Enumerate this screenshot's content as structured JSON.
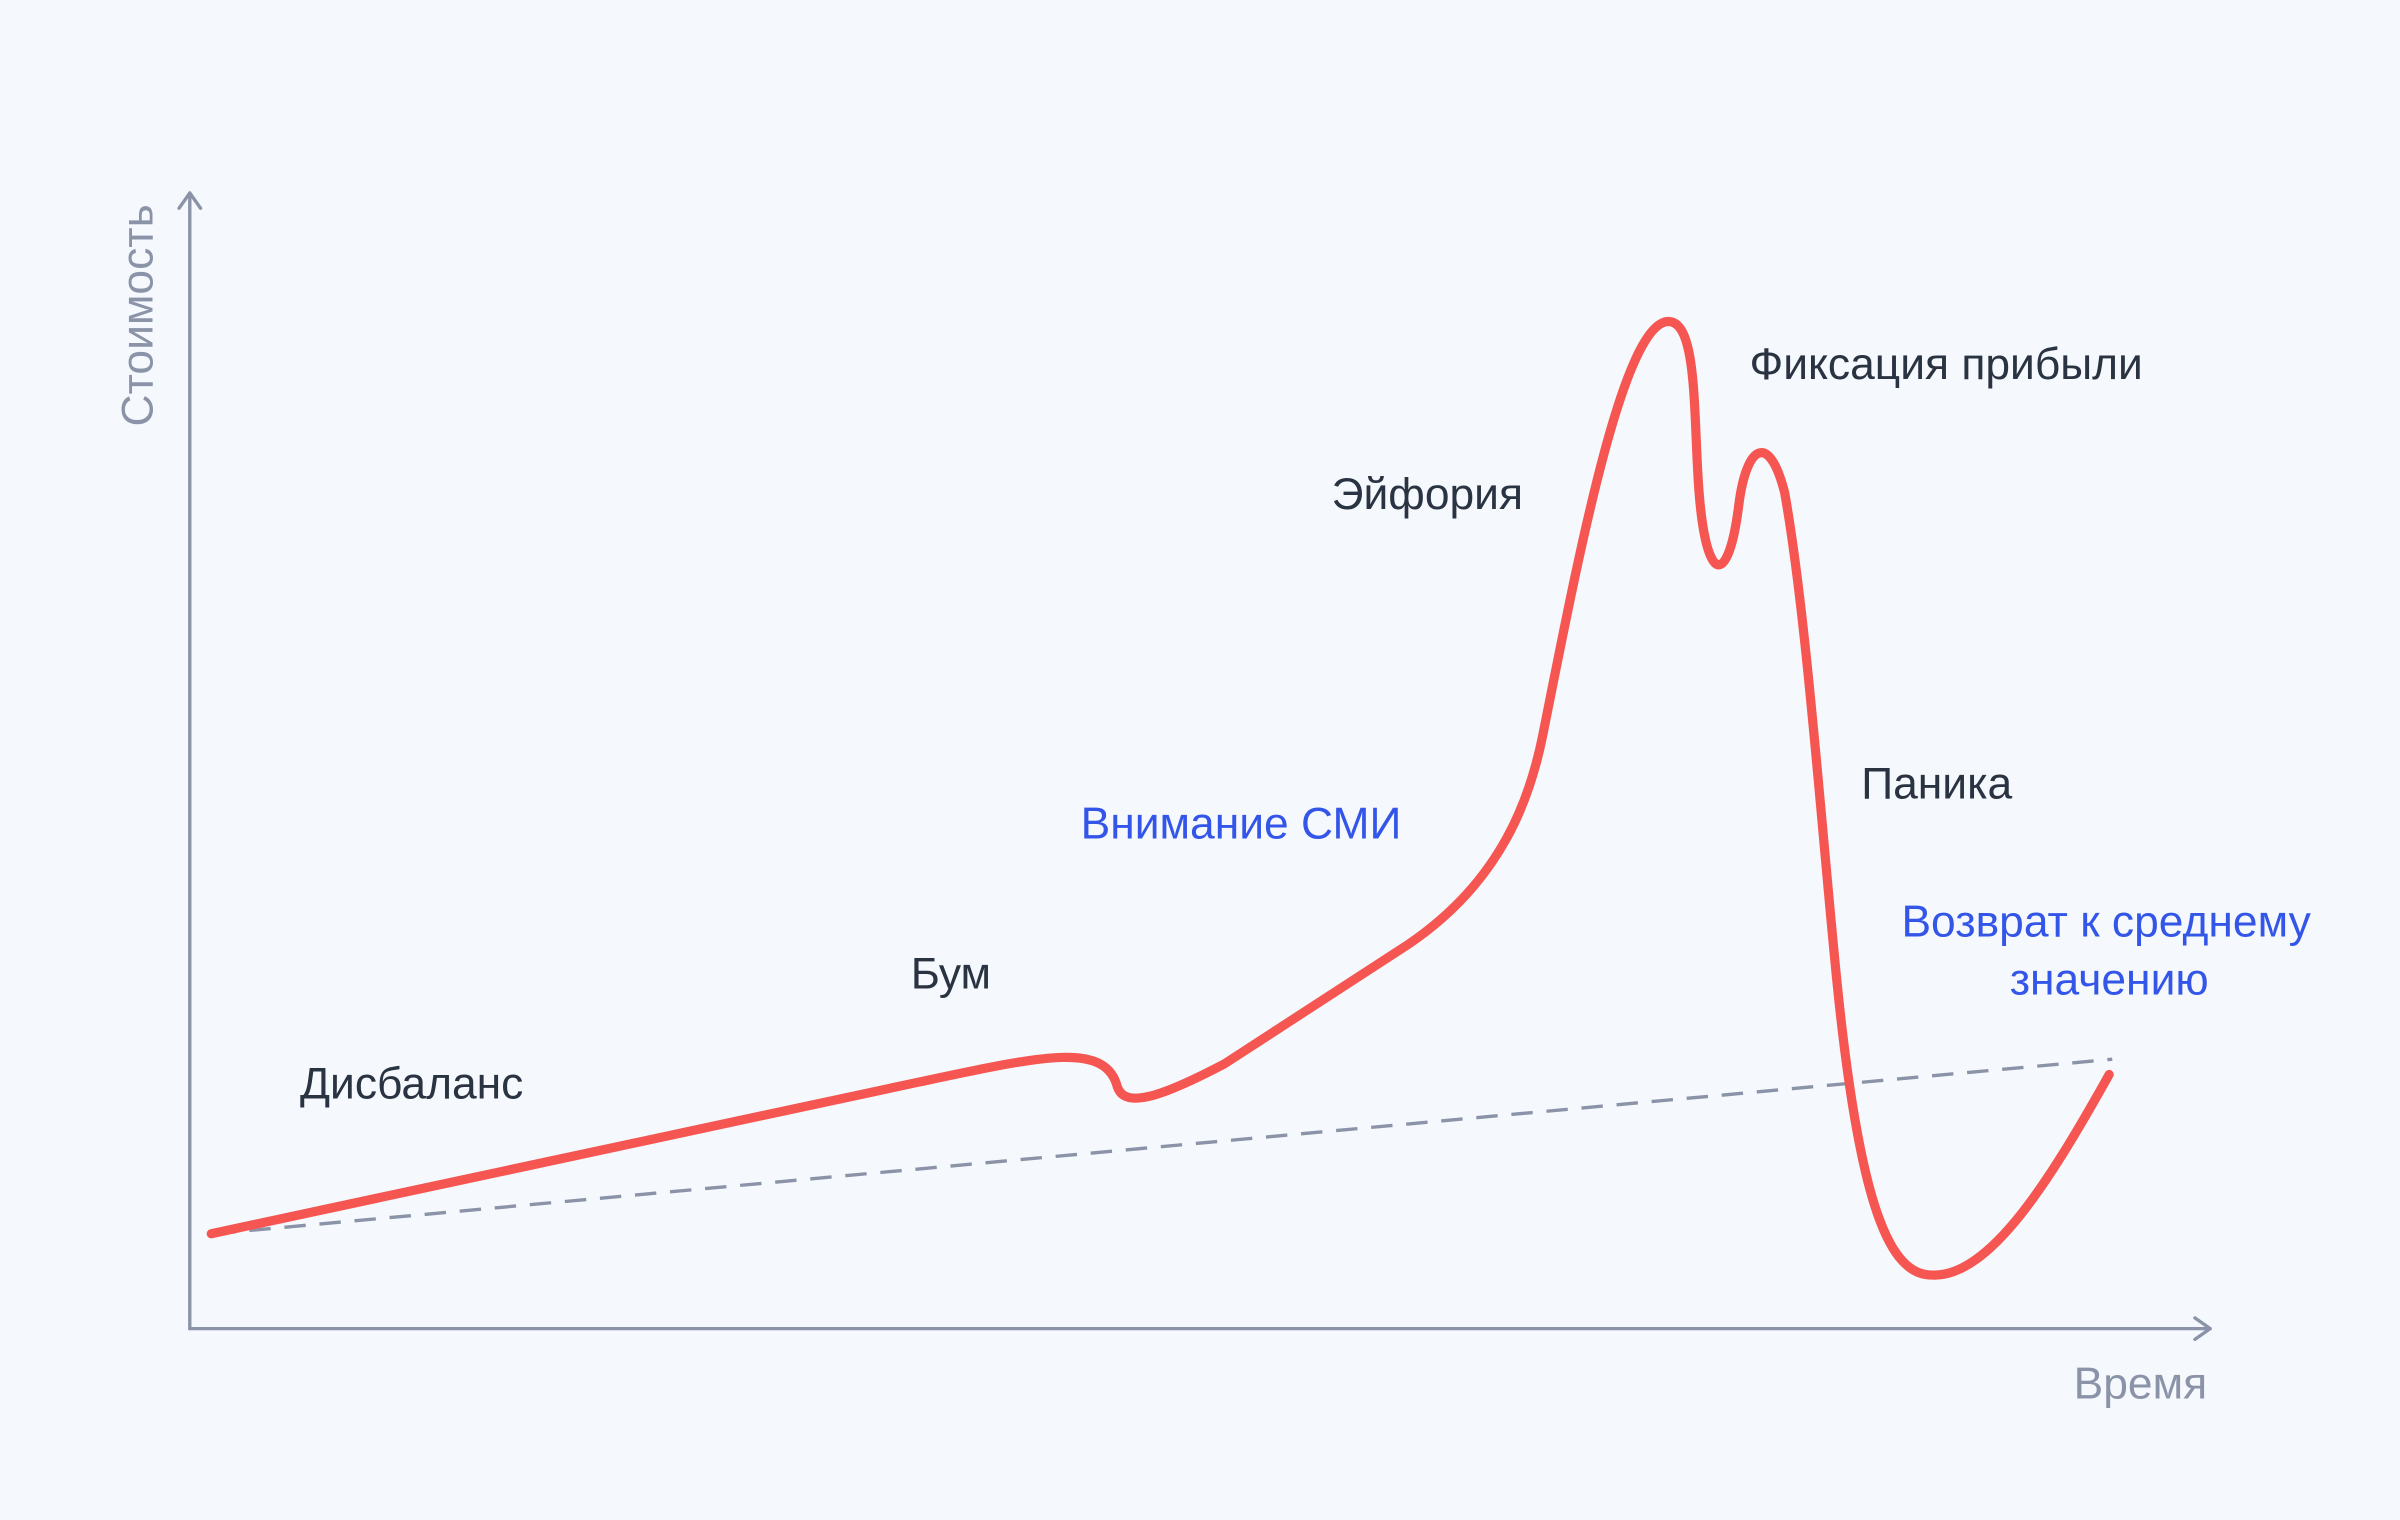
{
  "axes": {
    "y_label": "Стоимость",
    "x_label": "Время"
  },
  "stages": [
    {
      "label": "Дисбаланс"
    },
    {
      "label": "Бум"
    },
    {
      "label": "Внимание СМИ"
    },
    {
      "label": "Эйфория"
    },
    {
      "label": "Фиксация прибыли"
    },
    {
      "label": "Паника"
    },
    {
      "lines": [
        "Возврат к среднему",
        "значению"
      ]
    }
  ]
}
